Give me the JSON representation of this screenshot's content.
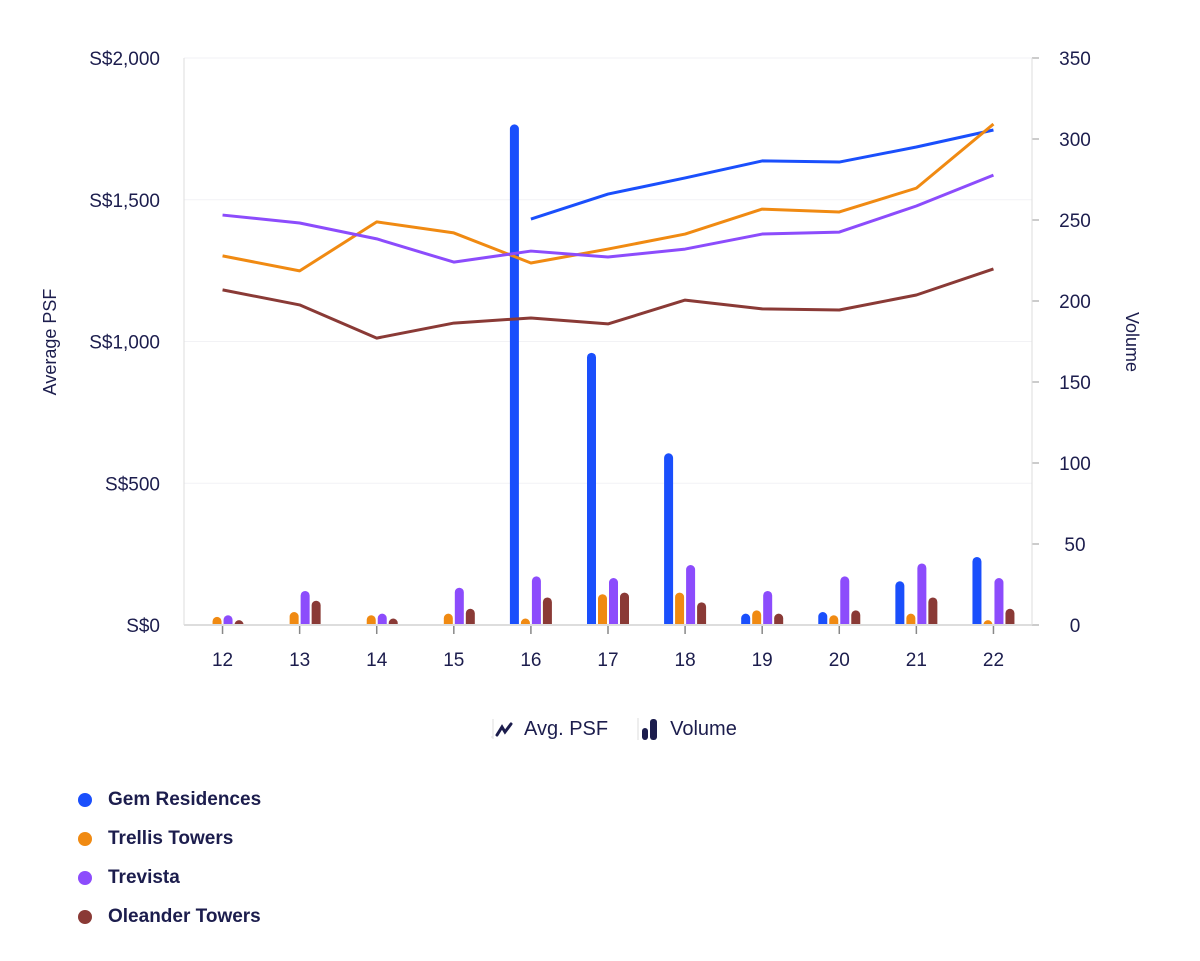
{
  "chart_data": {
    "type": "bar+line",
    "categories": [
      "12",
      "13",
      "14",
      "15",
      "16",
      "17",
      "18",
      "19",
      "20",
      "21",
      "22"
    ],
    "left_axis": {
      "label": "Average PSF",
      "range": [
        0,
        2000
      ],
      "ticks": [
        0,
        500,
        1000,
        1500,
        2000
      ],
      "tick_labels": [
        "S$0",
        "S$500",
        "S$1,000",
        "S$1,500",
        "S$2,000"
      ]
    },
    "right_axis": {
      "label": "Volume",
      "range": [
        0,
        350
      ],
      "ticks": [
        0,
        50,
        100,
        150,
        200,
        250,
        300,
        350
      ],
      "tick_labels": [
        "0",
        "50",
        "100",
        "150",
        "200",
        "250",
        "300",
        "350"
      ]
    },
    "series": [
      {
        "name": "Gem Residences",
        "color": "#1a4ffc",
        "psf": [
          null,
          null,
          null,
          null,
          1432,
          1520,
          1577,
          1637,
          1633,
          1686,
          1746
        ],
        "volume": [
          0,
          0,
          0,
          0,
          309,
          168,
          106,
          7,
          8,
          27,
          42
        ]
      },
      {
        "name": "Trellis Towers",
        "color": "#f08a12",
        "psf": [
          1302,
          1249,
          1422,
          1383,
          1277,
          1326,
          1379,
          1467,
          1457,
          1541,
          1767
        ],
        "volume": [
          5,
          8,
          6,
          7,
          4,
          19,
          20,
          9,
          6,
          7,
          3
        ]
      },
      {
        "name": "Trevista",
        "color": "#8c4cfc",
        "psf": [
          1446,
          1418,
          1362,
          1280,
          1319,
          1298,
          1326,
          1379,
          1386,
          1478,
          1587
        ],
        "volume": [
          6,
          21,
          7,
          23,
          30,
          29,
          37,
          21,
          30,
          38,
          29
        ]
      },
      {
        "name": "Oleander Towers",
        "color": "#8a3a36",
        "psf": [
          1182,
          1129,
          1012,
          1065,
          1083,
          1062,
          1146,
          1115,
          1111,
          1164,
          1256
        ],
        "volume": [
          3,
          15,
          4,
          10,
          17,
          20,
          14,
          7,
          9,
          17,
          10
        ]
      }
    ],
    "type_legend": {
      "line_label": "Avg. PSF",
      "bar_label": "Volume"
    },
    "grid": true,
    "legend_placement": "bottom-left"
  }
}
